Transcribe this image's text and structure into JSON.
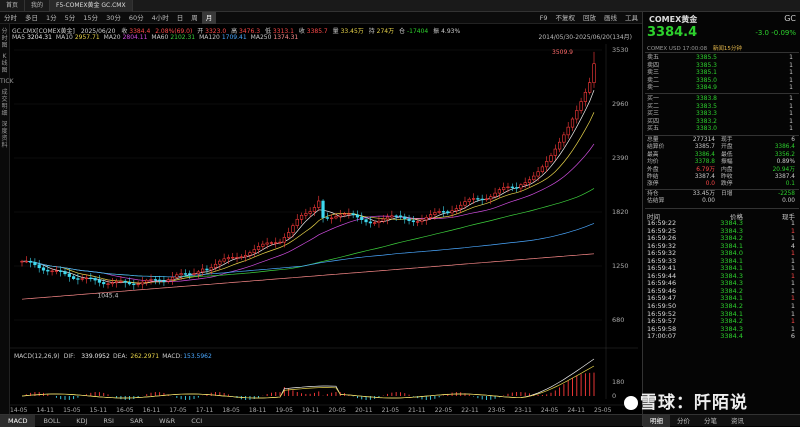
{
  "top_tabs": [
    "首页",
    "我的",
    "F5-COMEX黄金 GC.CMX"
  ],
  "toolbar": {
    "items": [
      "分时",
      "多日",
      "1分",
      "5分",
      "15分",
      "30分",
      "60分",
      "4小时",
      "日",
      "周",
      "月"
    ],
    "selected": "月",
    "right": [
      "F9",
      "不复权",
      "回放",
      "画线",
      "工具"
    ]
  },
  "sidebar": [
    "分时图",
    "K线图",
    "TICK",
    "成交明细",
    "深度资料"
  ],
  "chart_header": {
    "symbol": "GC.CMX[COMEX黄金]",
    "date": "2025/06/20",
    "close_label": "收",
    "close": "3384.4",
    "change_pct": "2.08%(69.0)",
    "open_label": "开",
    "open": "3323.0",
    "high_label": "高",
    "high": "3476.3",
    "low_label": "低",
    "low": "3313.1",
    "current_label": "收",
    "current": "3385.7",
    "vol_label": "量",
    "volume": "33.45万",
    "oi_label": "持",
    "oi": "274万",
    "oi_change_label": "仓",
    "oi_change": "-17404",
    "amp_label": "振",
    "amp": "4.93%"
  },
  "ma": [
    {
      "label": "MA5",
      "value": "3204.31",
      "color": "#f0f0f0"
    },
    {
      "label": "MA10",
      "value": "2957.71",
      "color": "#e8d44a"
    },
    {
      "label": "MA20",
      "value": "2804.11",
      "color": "#d04de0"
    },
    {
      "label": "MA60",
      "value": "2102.31",
      "color": "#3dd13d"
    },
    {
      "label": "MA120",
      "value": "1709.41",
      "color": "#4aa8ff"
    },
    {
      "label": "MA250",
      "value": "1374.31",
      "color": "#ff8c8c"
    }
  ],
  "range": "2014/05/30-2025/06/20(134月)",
  "yaxis": [
    "3530",
    "2960",
    "2390",
    "1820",
    "1250",
    "680"
  ],
  "max_label": "3509.9",
  "min_label": "1045.4",
  "macd_header": {
    "params": "MACD(12,26,9)",
    "dif_label": "DIF:",
    "dif": "339.0952",
    "dea_label": "DEA:",
    "dea": "262.2971",
    "macd_label": "MACD:",
    "macd": "153.5962"
  },
  "macd_yaxis": [
    "180",
    "0"
  ],
  "xaxis": [
    "14-05",
    "14-11",
    "15-05",
    "15-11",
    "16-05",
    "16-11",
    "17-05",
    "17-11",
    "18-05",
    "18-11",
    "19-05",
    "19-11",
    "20-05",
    "20-11",
    "21-05",
    "21-11",
    "22-05",
    "22-11",
    "23-05",
    "23-11",
    "24-05",
    "24-11",
    "25-05"
  ],
  "indicators": [
    "MACD",
    "BOLL",
    "KDJ",
    "RSI",
    "SAR",
    "W&R",
    "CCI"
  ],
  "quote": {
    "name": "COMEX黄金",
    "code": "GC",
    "price": "3384.4",
    "change": "-3.0",
    "change_pct": "-0.09%",
    "exch": "COMEX",
    "currency": "USD",
    "time": "17:00:08",
    "btn": "新闻15分钟"
  },
  "asks": [
    {
      "label": "卖五",
      "price": "3385.5",
      "vol": "1"
    },
    {
      "label": "卖四",
      "price": "3385.3",
      "vol": "1"
    },
    {
      "label": "卖三",
      "price": "3385.1",
      "vol": "1"
    },
    {
      "label": "卖二",
      "price": "3385.0",
      "vol": "1"
    },
    {
      "label": "卖一",
      "price": "3384.9",
      "vol": "1"
    }
  ],
  "bids": [
    {
      "label": "买一",
      "price": "3383.8",
      "vol": "1"
    },
    {
      "label": "买二",
      "price": "3383.5",
      "vol": "1"
    },
    {
      "label": "买三",
      "price": "3383.3",
      "vol": "1"
    },
    {
      "label": "买四",
      "price": "3383.2",
      "vol": "1"
    },
    {
      "label": "买五",
      "price": "3383.0",
      "vol": "1"
    }
  ],
  "stats": [
    {
      "a": "总量",
      "b": "277314",
      "bc": "#ccc",
      "c": "现手",
      "d": "6",
      "dc": "#ccc"
    },
    {
      "a": "结算价",
      "b": "3385.7",
      "bc": "#ccc",
      "c": "开盘",
      "d": "3386.4",
      "dc": "#2dd12d"
    },
    {
      "a": "最高",
      "b": "3386.4",
      "bc": "#2dd12d",
      "c": "最低",
      "d": "3356.2",
      "dc": "#2dd12d"
    },
    {
      "a": "均价",
      "b": "3378.8",
      "bc": "#2dd12d",
      "c": "振幅",
      "d": "0.89%",
      "dc": "#ccc"
    },
    {
      "a": "外盘",
      "b": "6.79万",
      "bc": "#ff4a4a",
      "c": "内盘",
      "d": "20.94万",
      "dc": "#2dd12d"
    },
    {
      "a": "昨结",
      "b": "3387.4",
      "bc": "#ccc",
      "c": "昨收",
      "d": "3387.4",
      "dc": "#ccc"
    },
    {
      "a": "涨停",
      "b": "0.0",
      "bc": "#ff4a4a",
      "c": "跌停",
      "d": "0.1",
      "dc": "#2dd12d"
    }
  ],
  "stats2": [
    {
      "a": "持仓",
      "b": "33.45万",
      "bc": "#ccc",
      "c": "日增",
      "d": "-2258",
      "dc": "#2dd12d"
    },
    {
      "a": "估结算",
      "b": "0.00",
      "bc": "#ccc",
      "c": "",
      "d": "0.00",
      "dc": "#ccc"
    }
  ],
  "tick_header": [
    "时间",
    "价格",
    "现手"
  ],
  "ticks": [
    {
      "t": "16:59:22",
      "p": "3384.3",
      "v": "1"
    },
    {
      "t": "16:59:25",
      "p": "3384.3",
      "v": "1"
    },
    {
      "t": "16:59:26",
      "p": "3384.2",
      "v": "1"
    },
    {
      "t": "16:59:32",
      "p": "3384.1",
      "v": "4"
    },
    {
      "t": "16:59:32",
      "p": "3384.0",
      "v": "1"
    },
    {
      "t": "16:59:33",
      "p": "3384.1",
      "v": "1"
    },
    {
      "t": "16:59:41",
      "p": "3384.1",
      "v": "1"
    },
    {
      "t": "16:59:44",
      "p": "3384.3",
      "v": "1"
    },
    {
      "t": "16:59:46",
      "p": "3384.3",
      "v": "1"
    },
    {
      "t": "16:59:46",
      "p": "3384.2",
      "v": "1"
    },
    {
      "t": "16:59:47",
      "p": "3384.1",
      "v": "1"
    },
    {
      "t": "16:59:50",
      "p": "3384.2",
      "v": "1"
    },
    {
      "t": "16:59:52",
      "p": "3384.1",
      "v": "1"
    },
    {
      "t": "16:59:57",
      "p": "3384.2",
      "v": "1"
    },
    {
      "t": "16:59:58",
      "p": "3384.3",
      "v": "1"
    },
    {
      "t": "17:00:07",
      "p": "3384.4",
      "v": "6"
    }
  ],
  "right_tabs": [
    "明细",
    "分价",
    "分笔",
    "资讯"
  ],
  "watermark": "雪球：阡陌说"
}
